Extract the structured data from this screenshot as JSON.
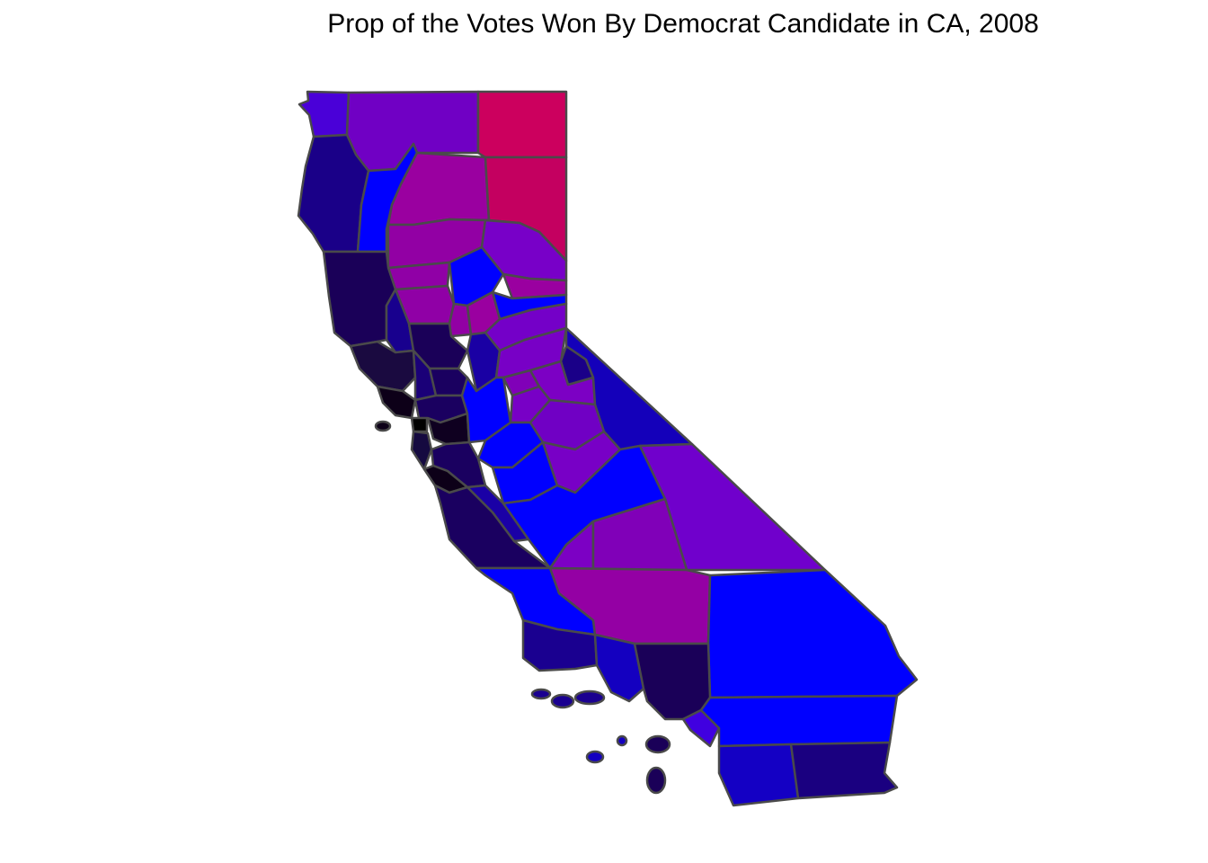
{
  "title": "Prop of the Votes Won By Democrat Candidate in CA, 2008",
  "map": {
    "region": "California",
    "year": "2008",
    "color_scale_low": "#d4005a",
    "color_scale_mid": "#7a00c8",
    "color_scale_high": "#0000ff",
    "color_scale_top": "#000000",
    "border_color": "#4a4a4a"
  }
}
